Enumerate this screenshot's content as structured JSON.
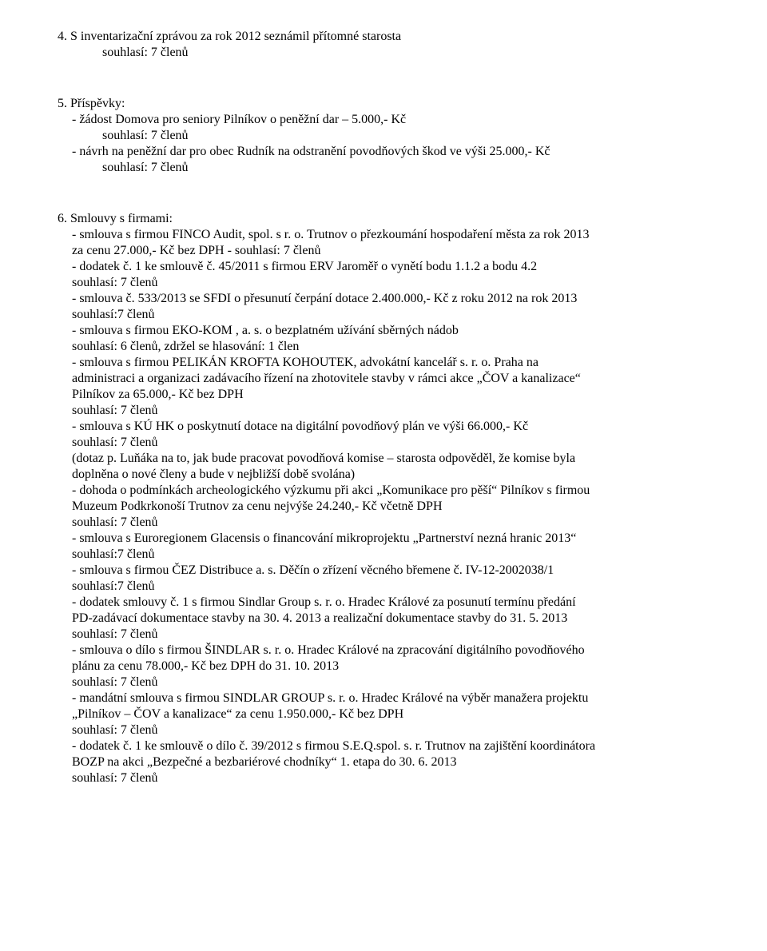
{
  "section4": {
    "heading": "4. S inventarizační zprávou za rok 2012  seznámil přítomné starosta",
    "vote": "souhlasí: 7 členů"
  },
  "section5": {
    "heading": "5. Příspěvky:",
    "items": [
      {
        "line1": "- žádost Domova pro seniory Pilníkov o peněžní dar – 5.000,- Kč",
        "vote": "souhlasí: 7 členů"
      },
      {
        "line1": "- návrh na peněžní dar pro obec Rudník na odstranění povodňových škod ve výši 25.000,- Kč",
        "vote": "souhlasí: 7 členů"
      }
    ]
  },
  "section6": {
    "heading": "6. Smlouvy s firmami:",
    "items": [
      {
        "l1": "- smlouva s firmou FINCO Audit, spol. s r. o. Trutnov o přezkoumání hospodaření města za rok 2013",
        "l2": "za cenu 27.000,- Kč bez DPH  - souhlasí: 7 členů"
      },
      {
        "l1": "- dodatek č. 1 ke smlouvě č. 45/2011 s firmou ERV Jaroměř o vynětí bodu 1.1.2 a bodu 4.2",
        "vote": "souhlasí: 7 členů"
      },
      {
        "l1": "- smlouva č. 533/2013 se SFDI o přesunutí čerpání dotace 2.400.000,- Kč z roku 2012 na rok 2013",
        "vote": "souhlasí:7 členů"
      },
      {
        "l1": "- smlouva s firmou EKO-KOM , a. s. o bezplatném užívání sběrných nádob",
        "vote": "souhlasí:  6 členů, zdržel se hlasování: 1 člen"
      },
      {
        "l1": "- smlouva s firmou PELIKÁN KROFTA KOHOUTEK, advokátní kancelář s. r. o. Praha na",
        "l2": "administraci a organizaci zadávacího řízení na zhotovitele stavby v rámci akce „ČOV a kanalizace“",
        "l3": "Pilníkov za 65.000,- Kč bez DPH",
        "vote": "souhlasí: 7 členů"
      },
      {
        "l1": "- smlouva s KÚ HK o poskytnutí dotace na digitální povodňový plán ve výši 66.000,- Kč",
        "vote": "souhlasí: 7 členů",
        "l2": "(dotaz p. Luňáka na to, jak bude pracovat povodňová komise – starosta odpověděl, že komise byla",
        "l3": "doplněna o nové členy a bude v nejbližší době svolána)"
      },
      {
        "l1": "- dohoda o podmínkách archeologického výzkumu při akci „Komunikace pro pěší“ Pilníkov s firmou",
        "l2": "Muzeum Podkrkonoší Trutnov za cenu nejvýše 24.240,- Kč včetně DPH",
        "vote": "souhlasí:  7 členů"
      },
      {
        "l1": "- smlouva s Euroregionem Glacensis o financování mikroprojektu „Partnerství nezná hranic 2013“",
        "vote": "souhlasí:7 členů"
      },
      {
        "l1": "- smlouva s firmou ČEZ Distribuce a. s. Děčín o zřízení věcného břemene č. IV-12-2002038/1",
        "vote": "souhlasí:7 členů"
      },
      {
        "l1": "- dodatek smlouvy č. 1 s firmou Sindlar Group s. r. o. Hradec Králové za posunutí termínu předání",
        "l2": "PD-zadávací dokumentace stavby na 30. 4. 2013 a realizační dokumentace stavby do 31. 5. 2013",
        "vote": "souhlasí:  7 členů"
      },
      {
        "l1": "- smlouva o dílo s firmou ŠINDLAR s. r. o. Hradec Králové na zpracování digitálního povodňového",
        "l2": "plánu za cenu 78.000,- Kč bez DPH do 31. 10. 2013",
        "vote": "souhlasí:  7 členů"
      },
      {
        "l1": "- mandátní smlouva s firmou SINDLAR GROUP s. r. o. Hradec Králové na výběr manažera projektu",
        "l2": "„Pilníkov – ČOV a kanalizace“ za cenu 1.950.000,- Kč bez DPH",
        "vote": "souhlasí: 7 členů"
      },
      {
        "l1": "- dodatek č. 1 ke smlouvě o dílo č. 39/2012 s firmou S.E.Q.spol. s. r. Trutnov na zajištění koordinátora",
        "l2": "BOZP na akci „Bezpečné a bezbariérové chodníky“ 1. etapa do 30. 6. 2013",
        "vote": "souhlasí: 7 členů"
      }
    ]
  }
}
